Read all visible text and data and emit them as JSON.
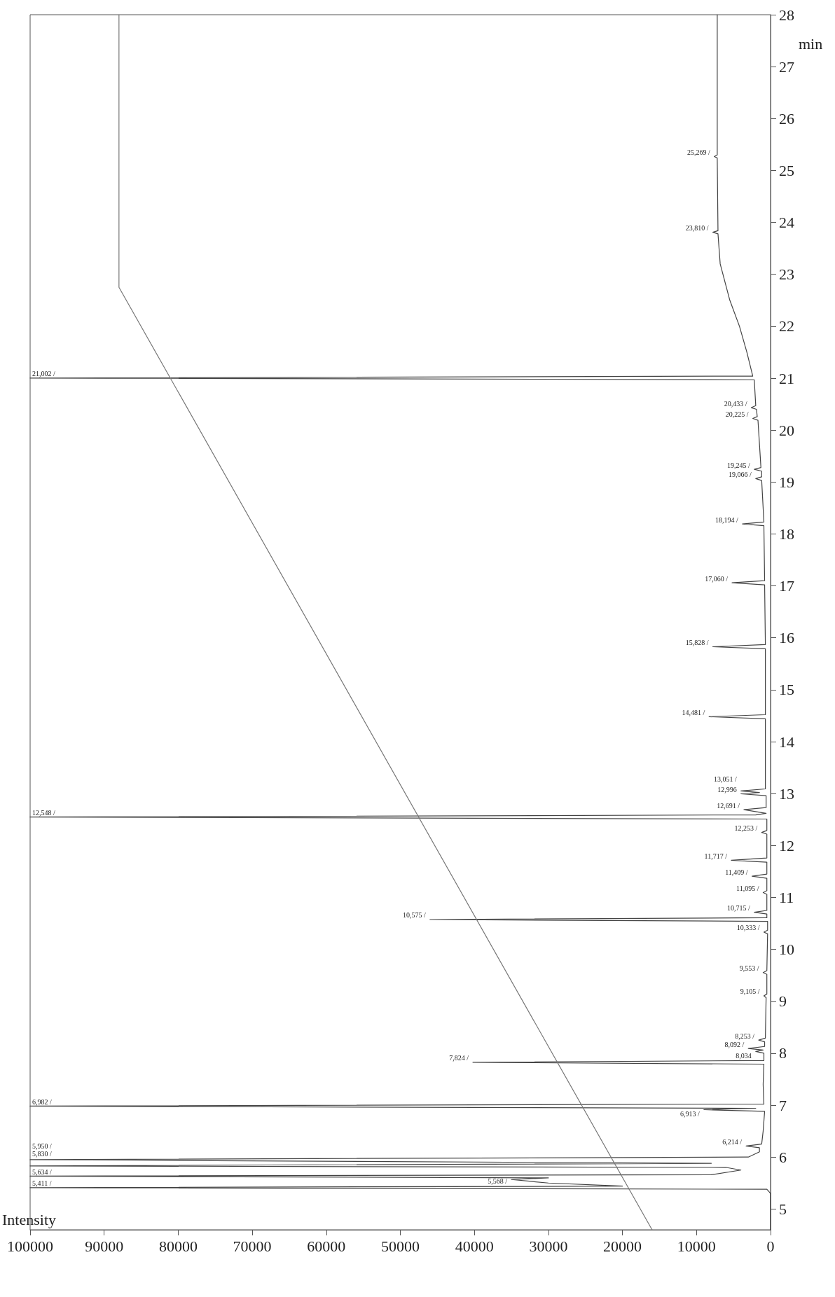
{
  "chart_data": {
    "type": "line",
    "xlabel": "Intensity",
    "ylabel": "min",
    "xlim": [
      100000,
      0
    ],
    "xticks": [
      100000,
      90000,
      80000,
      70000,
      60000,
      50000,
      40000,
      30000,
      20000,
      10000,
      0
    ],
    "ylim": [
      4.6,
      28
    ],
    "yticks": [
      5,
      6,
      7,
      8,
      9,
      10,
      11,
      12,
      13,
      14,
      15,
      16,
      17,
      18,
      19,
      20,
      21,
      22,
      23,
      24,
      25,
      26,
      27,
      28
    ],
    "grid": false,
    "marker": "none",
    "series": [
      {
        "color": "#444444",
        "x": [
          0,
          0,
          500,
          100000,
          20000,
          30000,
          35000,
          30000,
          100000,
          8000,
          4000,
          6000,
          100000,
          8000,
          100000,
          3000,
          1500,
          1500,
          3300,
          1200,
          1000,
          800,
          9000,
          2000,
          100000,
          900,
          1000,
          900,
          40200,
          900,
          900,
          2000,
          1000,
          3000,
          800,
          800,
          1600,
          700,
          600,
          900,
          500,
          500,
          1000,
          500,
          400,
          900,
          400,
          400,
          46000,
          500,
          500,
          2200,
          500,
          500,
          1000,
          500,
          500,
          2500,
          500,
          500,
          5300,
          500,
          500,
          1200,
          500,
          500,
          100000,
          2000,
          600,
          3600,
          600,
          600,
          4000,
          1500,
          4000,
          700,
          700,
          8300,
          700,
          700,
          7800,
          700,
          800,
          5200,
          800,
          900,
          3800,
          900,
          1200,
          2000,
          1200,
          1200,
          2200,
          1300,
          1700,
          2400,
          1800,
          1900,
          2600,
          2000,
          2200,
          100000,
          2400,
          3200,
          4200,
          5500,
          6800,
          7100,
          7800,
          7100,
          7200,
          7600,
          7200,
          7200
        ],
        "values": [
          4.6,
          5.3,
          5.38,
          5.411,
          5.44,
          5.5,
          5.568,
          5.6,
          5.634,
          5.66,
          5.75,
          5.8,
          5.83,
          5.88,
          5.95,
          6.0,
          6.1,
          6.18,
          6.214,
          6.25,
          6.5,
          6.88,
          6.913,
          6.94,
          6.982,
          7.02,
          7.4,
          7.79,
          7.824,
          7.86,
          8.0,
          8.034,
          8.06,
          8.092,
          8.13,
          8.22,
          8.253,
          8.29,
          9.07,
          9.105,
          9.14,
          9.52,
          9.553,
          9.59,
          10.3,
          10.333,
          10.37,
          10.54,
          10.575,
          10.61,
          10.68,
          10.715,
          10.75,
          11.06,
          11.095,
          11.13,
          11.37,
          11.409,
          11.45,
          11.68,
          11.717,
          11.76,
          12.22,
          12.253,
          12.29,
          12.51,
          12.548,
          12.59,
          12.62,
          12.691,
          12.73,
          12.96,
          12.996,
          13.02,
          13.051,
          13.09,
          14.44,
          14.481,
          14.52,
          15.79,
          15.828,
          15.87,
          17.02,
          17.06,
          17.1,
          18.16,
          18.194,
          18.23,
          19.03,
          19.066,
          19.1,
          19.21,
          19.245,
          19.28,
          20.19,
          20.225,
          20.26,
          20.4,
          20.433,
          20.47,
          20.97,
          21.002,
          21.04,
          21.5,
          22.0,
          22.5,
          23.2,
          23.78,
          23.81,
          23.84,
          25.24,
          25.269,
          25.3,
          28
        ]
      },
      {
        "color": "#777777",
        "x": [
          16000,
          88000,
          88000
        ],
        "values": [
          4.6,
          22.75,
          28
        ]
      }
    ],
    "annotations": [
      {
        "text": "5,411 /",
        "x": 100000,
        "y": 5.411
      },
      {
        "text": "5,568 /",
        "x": 35000,
        "y": 5.568
      },
      {
        "text": "5,634 /",
        "x": 100000,
        "y": 5.634
      },
      {
        "text": "5,830 /",
        "x": 100000,
        "y": 5.83
      },
      {
        "text": "5,950 /",
        "x": 100000,
        "y": 5.95
      },
      {
        "text": "6,214 /",
        "x": 3300,
        "y": 6.214
      },
      {
        "text": "6,913 /",
        "x": 9000,
        "y": 6.913
      },
      {
        "text": "6,982 /",
        "x": 100000,
        "y": 6.982
      },
      {
        "text": "7,824 /",
        "x": 40200,
        "y": 7.824
      },
      {
        "text": "8,034",
        "x": 2000,
        "y": 8.034
      },
      {
        "text": "8,092 /",
        "x": 3000,
        "y": 8.092
      },
      {
        "text": "8,253 /",
        "x": 1600,
        "y": 8.253
      },
      {
        "text": "9,105 /",
        "x": 900,
        "y": 9.105
      },
      {
        "text": "9,553 /",
        "x": 1000,
        "y": 9.553
      },
      {
        "text": "10,333 /",
        "x": 900,
        "y": 10.333
      },
      {
        "text": "10,575 /",
        "x": 46000,
        "y": 10.575
      },
      {
        "text": "10,715 /",
        "x": 2200,
        "y": 10.715
      },
      {
        "text": "11,095 /",
        "x": 1000,
        "y": 11.095
      },
      {
        "text": "11,409 /",
        "x": 2500,
        "y": 11.409
      },
      {
        "text": "11,717 /",
        "x": 5300,
        "y": 11.717
      },
      {
        "text": "12,253 /",
        "x": 1200,
        "y": 12.253
      },
      {
        "text": "12,548 /",
        "x": 100000,
        "y": 12.548
      },
      {
        "text": "12,691 /",
        "x": 3600,
        "y": 12.691
      },
      {
        "text": "12,996",
        "x": 4000,
        "y": 12.996
      },
      {
        "text": "13,051 /",
        "x": 4000,
        "y": 13.051
      },
      {
        "text": "14,481 /",
        "x": 8300,
        "y": 14.481
      },
      {
        "text": "15,828 /",
        "x": 7800,
        "y": 15.828
      },
      {
        "text": "17,060 /",
        "x": 5200,
        "y": 17.06
      },
      {
        "text": "18,194 /",
        "x": 3800,
        "y": 18.194
      },
      {
        "text": "19,066 /",
        "x": 2000,
        "y": 19.066
      },
      {
        "text": "19,245 /",
        "x": 2200,
        "y": 19.245
      },
      {
        "text": "20,225 /",
        "x": 2400,
        "y": 20.225
      },
      {
        "text": "20,433 /",
        "x": 2600,
        "y": 20.433
      },
      {
        "text": "21,002 /",
        "x": 100000,
        "y": 21.002
      },
      {
        "text": "23,810 /",
        "x": 7800,
        "y": 23.81
      },
      {
        "text": "25,269 /",
        "x": 7600,
        "y": 25.269
      }
    ]
  }
}
